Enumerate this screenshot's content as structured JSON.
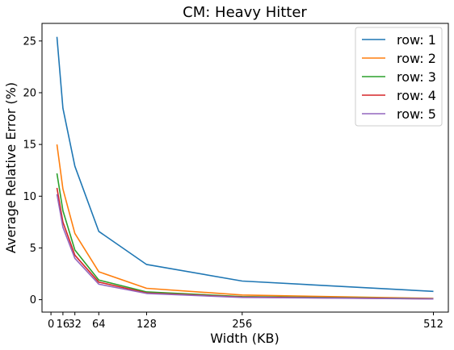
{
  "chart_data": {
    "type": "line",
    "title": "CM: Heavy Hitter",
    "xlabel": "Width (KB)",
    "ylabel": "Average Relative Error (%)",
    "x": [
      8,
      16,
      32,
      64,
      128,
      256,
      512
    ],
    "xticks": [
      0,
      16,
      32,
      64,
      128,
      256,
      512
    ],
    "xtick_labels": [
      "0",
      "16",
      "32",
      "64",
      "128",
      "256",
      "512"
    ],
    "yticks": [
      0,
      5,
      10,
      15,
      20,
      25
    ],
    "ytick_labels": [
      "0",
      "5",
      "10",
      "15",
      "20",
      "25"
    ],
    "xlim": [
      -12,
      532
    ],
    "ylim": [
      -1.2,
      26.7
    ],
    "legend_position": "top-right",
    "grid": false,
    "series": [
      {
        "name": "row: 1",
        "color": "#1f77b4",
        "values": [
          25.4,
          18.5,
          12.9,
          6.6,
          3.4,
          1.8,
          0.8
        ]
      },
      {
        "name": "row: 2",
        "color": "#ff7f0e",
        "values": [
          15.0,
          10.7,
          6.4,
          2.7,
          1.1,
          0.45,
          0.12
        ]
      },
      {
        "name": "row: 3",
        "color": "#2ca02c",
        "values": [
          12.2,
          8.6,
          4.8,
          1.9,
          0.75,
          0.3,
          0.1
        ]
      },
      {
        "name": "row: 4",
        "color": "#d62728",
        "values": [
          10.8,
          7.5,
          4.3,
          1.7,
          0.65,
          0.25,
          0.08
        ]
      },
      {
        "name": "row: 5",
        "color": "#9467bd",
        "values": [
          10.2,
          7.0,
          4.0,
          1.5,
          0.6,
          0.22,
          0.07
        ]
      }
    ]
  }
}
